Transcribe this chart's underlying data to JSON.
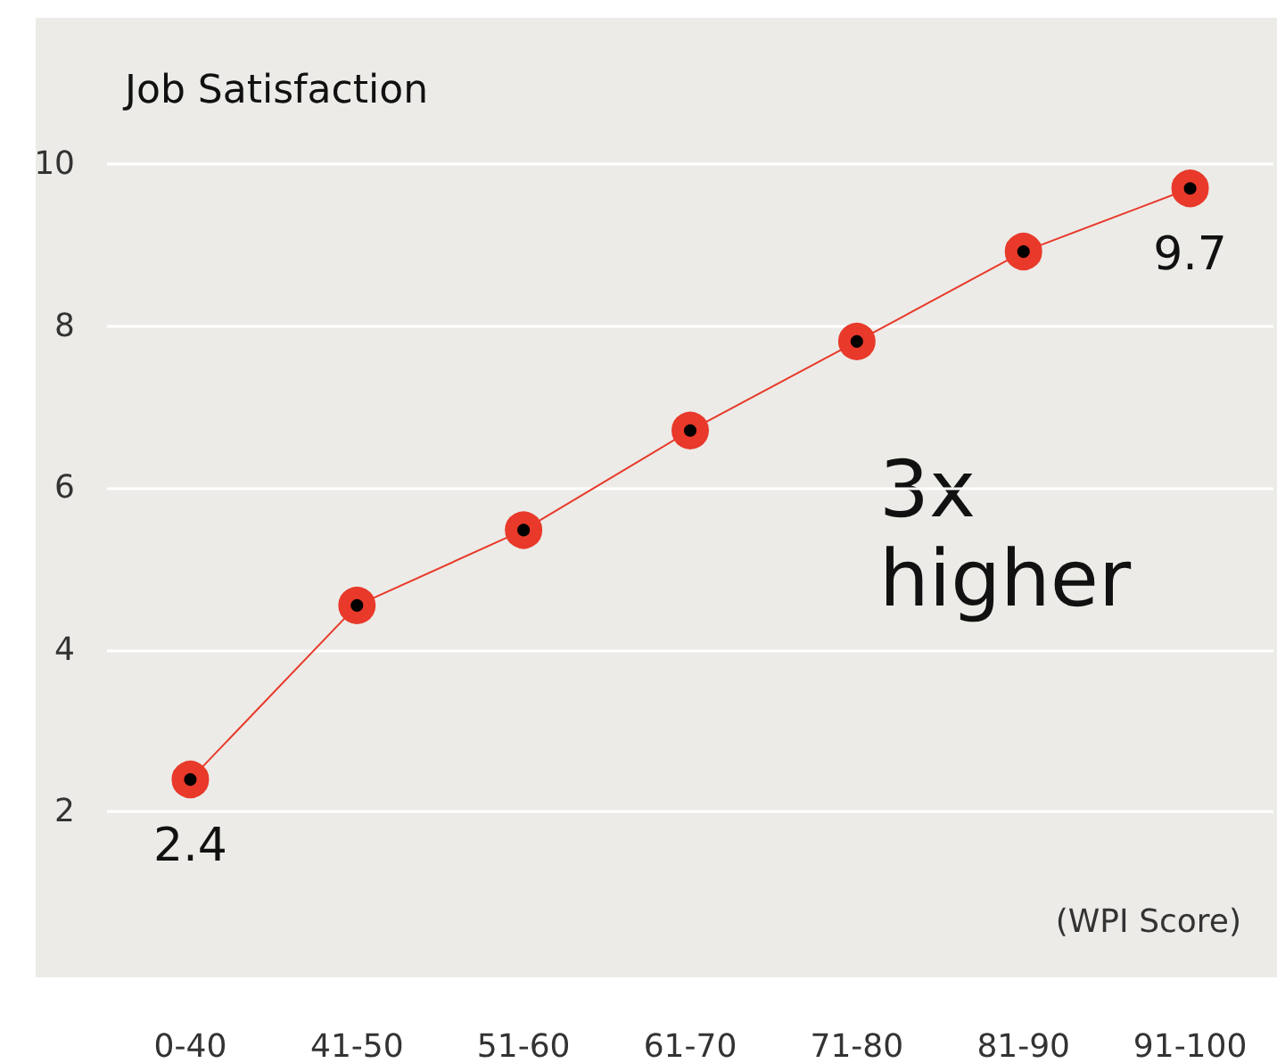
{
  "chart_data": {
    "type": "line",
    "ylabel": "Job Satisfaction",
    "xlabel": "(WPI Score)",
    "categories": [
      "0-40",
      "41-50",
      "51-60",
      "61-70",
      "71-80",
      "81-90",
      "91-100"
    ],
    "series": [
      {
        "color": "#e8392a",
        "values": [
          2.4,
          4.55,
          5.48,
          6.71,
          7.81,
          8.92,
          9.7
        ],
        "value_labels": [
          "2.4",
          null,
          null,
          null,
          null,
          null,
          "9.7"
        ]
      }
    ],
    "ylim": [
      0,
      10
    ],
    "yticks": [
      2,
      4,
      6,
      8,
      10
    ],
    "grid": "y",
    "marker": "circle",
    "line_style": "solid",
    "annotations": [
      "3x higher"
    ]
  }
}
